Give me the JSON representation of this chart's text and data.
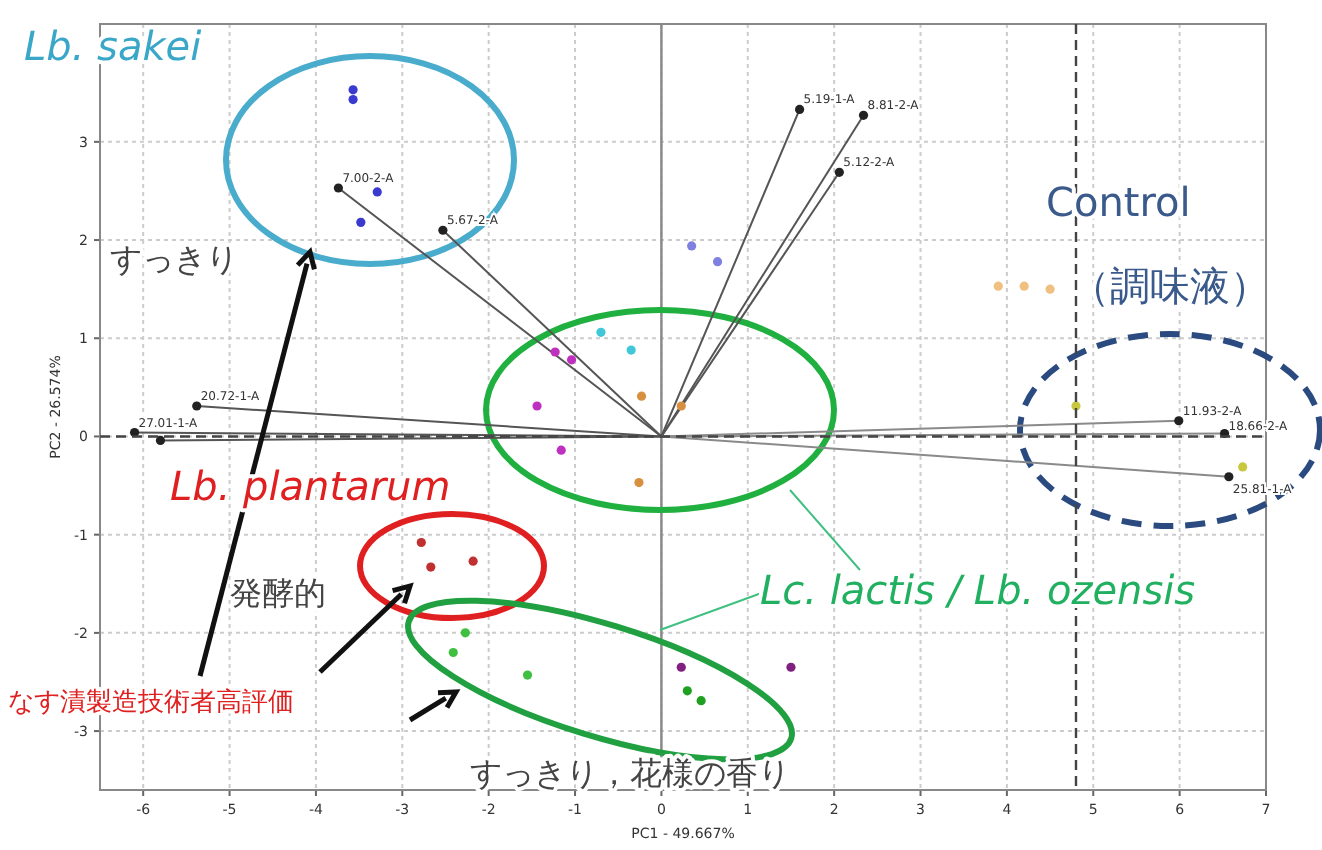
{
  "chart_data": {
    "type": "scatter",
    "xlabel": "PC1 - 49.667%",
    "ylabel": "PC2 - 26.574%",
    "xlim": [
      -6.5,
      7
    ],
    "ylim": [
      -3.6,
      4.2
    ],
    "xticks": [
      -6,
      -5,
      -4,
      -3,
      -2,
      -1,
      0,
      1,
      2,
      3,
      4,
      5,
      6,
      7
    ],
    "yticks": [
      -3,
      -2,
      -1,
      0,
      1,
      2,
      3
    ],
    "grid": true,
    "marker": "circle",
    "ref_lines": [
      {
        "axis": "y",
        "value": 0,
        "line_style": "dashed"
      },
      {
        "axis": "x",
        "value": 4.8,
        "line_style": "dashed"
      }
    ],
    "series": [
      {
        "type": "line",
        "color": "#555555",
        "x": [
          0,
          1.6
        ],
        "values": [
          0,
          3.33
        ]
      },
      {
        "type": "line",
        "color": "#555555",
        "x": [
          0,
          2.34
        ],
        "values": [
          0,
          3.27
        ]
      },
      {
        "type": "line",
        "color": "#555555",
        "x": [
          0,
          2.06
        ],
        "values": [
          0,
          2.69
        ]
      },
      {
        "type": "line",
        "color": "#555555",
        "x": [
          0,
          -3.74
        ],
        "values": [
          0,
          2.53
        ]
      },
      {
        "type": "line",
        "color": "#555555",
        "x": [
          0,
          -2.53
        ],
        "values": [
          0,
          2.1
        ]
      },
      {
        "type": "line",
        "color": "#555555",
        "x": [
          0,
          -5.38
        ],
        "values": [
          0,
          0.31
        ]
      },
      {
        "type": "line",
        "color": "#555555",
        "x": [
          0,
          -6.1
        ],
        "values": [
          0,
          0.04
        ]
      },
      {
        "type": "line",
        "color": "#555555",
        "x": [
          0,
          -5.8
        ],
        "values": [
          0,
          -0.04
        ]
      },
      {
        "type": "line",
        "color": "#8a8a8a",
        "x": [
          0,
          5.99
        ],
        "values": [
          0,
          0.16
        ]
      },
      {
        "type": "line",
        "color": "#8a8a8a",
        "x": [
          0,
          6.52
        ],
        "values": [
          0,
          0.03
        ]
      },
      {
        "type": "line",
        "color": "#8a8a8a",
        "x": [
          0,
          6.57
        ],
        "values": [
          0,
          -0.41
        ]
      },
      {
        "color": "#3a3ad0",
        "x": [
          -3.57,
          -3.57,
          -3.29,
          -3.48
        ],
        "values": [
          3.53,
          3.43,
          2.49,
          2.18
        ]
      },
      {
        "color": "#c030c0",
        "x": [
          -1.23,
          -1.44,
          -1.16,
          -1.04
        ],
        "values": [
          0.86,
          0.31,
          -0.14,
          0.78
        ]
      },
      {
        "color": "#40c8d8",
        "x": [
          -0.7,
          -0.35
        ],
        "values": [
          1.06,
          0.88
        ]
      },
      {
        "color": "#d89040",
        "x": [
          -0.23,
          0.23,
          -0.26
        ],
        "values": [
          0.41,
          0.31,
          -0.47
        ]
      },
      {
        "color": "#8080e0",
        "x": [
          0.35,
          0.65
        ],
        "values": [
          1.94,
          1.78
        ]
      },
      {
        "color": "#f0c080",
        "x": [
          3.9,
          4.2,
          4.5
        ],
        "values": [
          1.53,
          1.53,
          1.5
        ]
      },
      {
        "color": "#c8c840",
        "x": [
          4.8,
          6.73
        ],
        "values": [
          0.31,
          -0.31
        ]
      },
      {
        "color": "#c03030",
        "x": [
          -2.78,
          -2.67,
          -2.18
        ],
        "values": [
          -1.08,
          -1.33,
          -1.27
        ]
      },
      {
        "color": "#40c040",
        "x": [
          -2.27,
          -2.41,
          -1.55
        ],
        "values": [
          -2.0,
          -2.2,
          -2.43
        ]
      },
      {
        "color": "#802080",
        "x": [
          0.23,
          1.5
        ],
        "values": [
          -2.35,
          -2.35
        ]
      },
      {
        "color": "#20a020",
        "x": [
          0.3,
          0.46
        ],
        "values": [
          -2.59,
          -2.69
        ]
      }
    ],
    "annotations": [
      "Lb. sakei",
      "すっきり",
      "Control",
      "（調味液）",
      "Lb. plantarum",
      "発酵的",
      "Lc. lactis / Lb. ozensis",
      "なす漬製造技術者高評価",
      "すっきり，花様の香り",
      {
        "text": "5.19-1-A",
        "x": 1.6,
        "y": 3.33
      },
      {
        "text": "8.81-2-A",
        "x": 2.34,
        "y": 3.27
      },
      {
        "text": "5.12-2-A",
        "x": 2.06,
        "y": 2.69
      },
      {
        "text": "7.00-2-A",
        "x": -3.74,
        "y": 2.53
      },
      {
        "text": "5.67-2-A",
        "x": -2.53,
        "y": 2.1
      },
      {
        "text": "20.72-1-A",
        "x": -5.38,
        "y": 0.31
      },
      {
        "text": "27.01-1-A",
        "x": -6.1,
        "y": 0.04
      },
      {
        "text": "11.93-2-A",
        "x": 5.99,
        "y": 0.16
      },
      {
        "text": "18.66-2-A",
        "x": 6.52,
        "y": 0
      },
      {
        "text": "25.81-1-A",
        "x": 6.57,
        "y": -0.41
      }
    ]
  }
}
